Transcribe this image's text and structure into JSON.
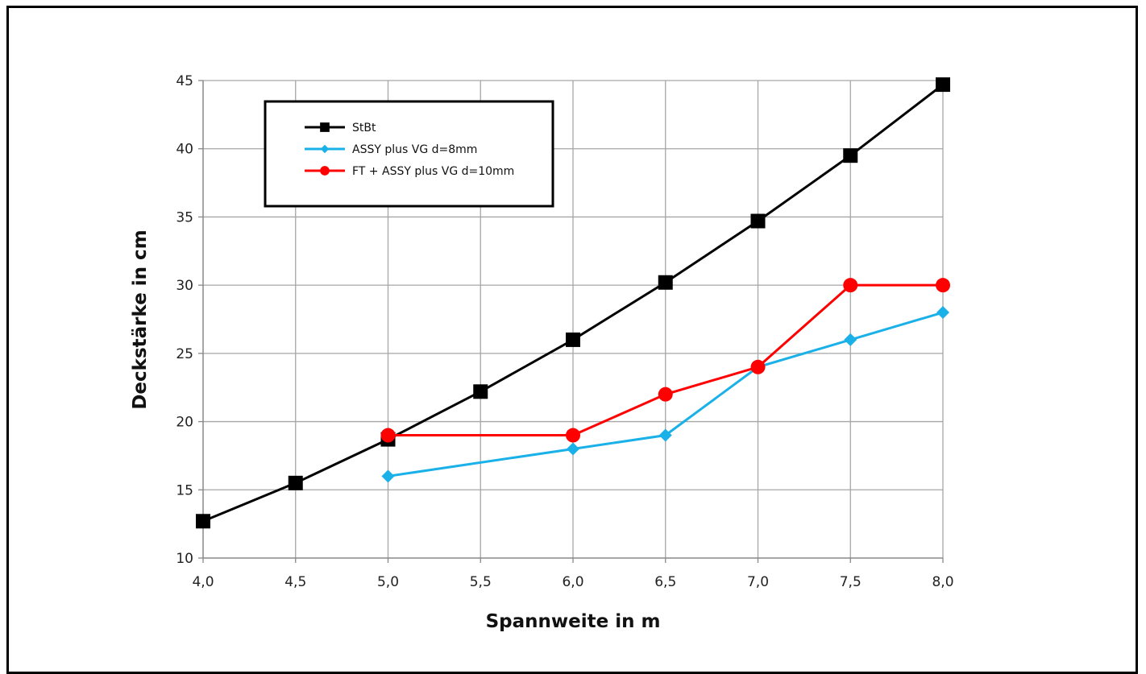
{
  "chart_data": {
    "type": "line",
    "xlabel": "Spannweite in m",
    "ylabel": "Deckstärke in cm",
    "xlim": [
      4.0,
      8.0
    ],
    "ylim": [
      10,
      45
    ],
    "x_ticks": [
      "4,0",
      "4,5",
      "5,0",
      "5,5",
      "6,0",
      "6,5",
      "7,0",
      "7,5",
      "8,0"
    ],
    "y_ticks": [
      "10",
      "15",
      "20",
      "25",
      "30",
      "35",
      "40",
      "45"
    ],
    "grid": true,
    "legend_position": "top-left",
    "series": [
      {
        "name": "StBt",
        "color": "#000000",
        "marker": "square",
        "points": [
          [
            4.0,
            12.7
          ],
          [
            4.5,
            15.5
          ],
          [
            5.0,
            18.7
          ],
          [
            5.5,
            22.2
          ],
          [
            6.0,
            26.0
          ],
          [
            6.5,
            30.2
          ],
          [
            7.0,
            34.7
          ],
          [
            7.5,
            39.5
          ],
          [
            8.0,
            44.7
          ]
        ]
      },
      {
        "name": "ASSY plus VG d=8mm",
        "color": "#1ab0e8",
        "marker": "diamond",
        "points": [
          [
            5.0,
            16
          ],
          [
            6.0,
            18
          ],
          [
            6.5,
            19
          ],
          [
            7.0,
            24
          ],
          [
            7.5,
            26
          ],
          [
            8.0,
            28
          ]
        ]
      },
      {
        "name": "FT + ASSY plus VG d=10mm",
        "color": "#ff0000",
        "marker": "circle",
        "points": [
          [
            5.0,
            19
          ],
          [
            6.0,
            19
          ],
          [
            6.5,
            22
          ],
          [
            7.0,
            24
          ],
          [
            7.5,
            30
          ],
          [
            8.0,
            30
          ]
        ]
      }
    ]
  }
}
